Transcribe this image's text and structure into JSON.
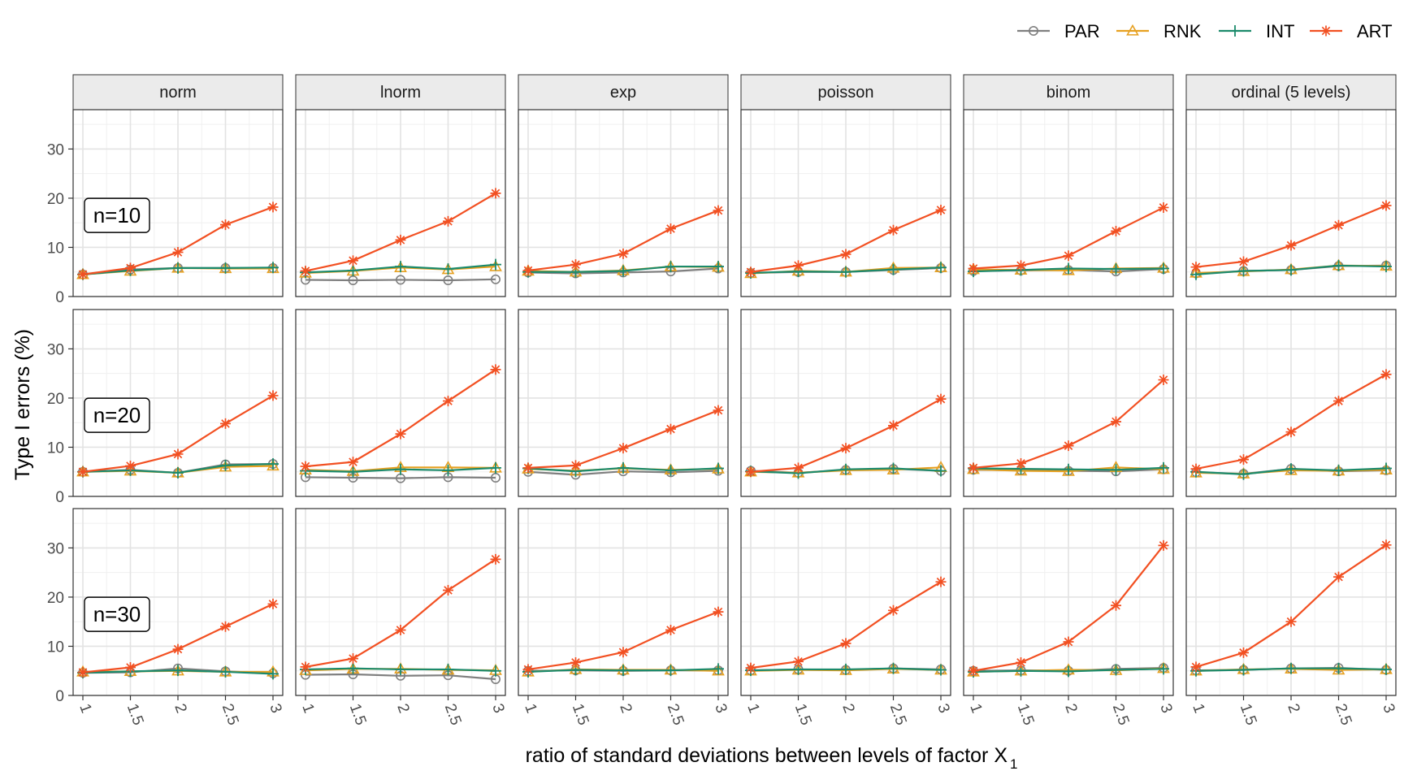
{
  "chart_data": {
    "type": "line",
    "xlabel": "ratio of standard deviations between levels of factor X",
    "xlabel_subscript": "1",
    "ylabel": "Type I errors (%)",
    "x": [
      1,
      1.5,
      2,
      2.5,
      3
    ],
    "x_tick_labels": [
      "1",
      "1.5",
      "2",
      "2.5",
      "3"
    ],
    "ylim": [
      0,
      38
    ],
    "y_ticks": [
      0,
      10,
      20,
      30
    ],
    "y_tick_labels": [
      "0",
      "10",
      "20",
      "30"
    ],
    "grid": true,
    "legend_position": "top-right",
    "columns": [
      "norm",
      "lnorm",
      "exp",
      "poisson",
      "binom",
      "ordinal (5 levels)"
    ],
    "rows": [
      "n=10",
      "n=20",
      "n=30"
    ],
    "series_styles": [
      {
        "name": "PAR",
        "color": "#7f7f7f",
        "marker": "circle"
      },
      {
        "name": "RNK",
        "color": "#e6a020",
        "marker": "triangle"
      },
      {
        "name": "INT",
        "color": "#1b8a6b",
        "marker": "plus"
      },
      {
        "name": "ART",
        "color": "#f25022",
        "marker": "asterisk"
      }
    ],
    "panels": [
      [
        {
          "PAR": [
            4.5,
            5.5,
            5.8,
            5.8,
            5.8
          ],
          "RNK": [
            4.5,
            5.2,
            5.8,
            5.7,
            5.7
          ],
          "INT": [
            4.5,
            5.3,
            5.8,
            5.8,
            5.9
          ],
          "ART": [
            4.5,
            5.8,
            9.0,
            14.6,
            18.2
          ]
        },
        {
          "PAR": [
            3.4,
            3.3,
            3.4,
            3.3,
            3.5
          ],
          "RNK": [
            4.8,
            5.2,
            5.9,
            5.5,
            6.1
          ],
          "INT": [
            4.9,
            5.3,
            6.1,
            5.6,
            6.5
          ],
          "ART": [
            5.2,
            7.3,
            11.5,
            15.3,
            21.0
          ]
        },
        {
          "PAR": [
            4.9,
            4.7,
            4.9,
            5.1,
            5.7
          ],
          "RNK": [
            5.2,
            5.0,
            5.3,
            6.1,
            6.0
          ],
          "INT": [
            5.0,
            5.0,
            5.2,
            6.1,
            6.1
          ],
          "ART": [
            5.3,
            6.5,
            8.7,
            13.8,
            17.5
          ]
        },
        {
          "PAR": [
            4.8,
            5.0,
            5.0,
            5.4,
            5.8
          ],
          "RNK": [
            4.7,
            5.2,
            5.0,
            5.8,
            5.9
          ],
          "INT": [
            4.8,
            5.1,
            5.0,
            5.5,
            5.9
          ],
          "ART": [
            5.0,
            6.3,
            8.6,
            13.5,
            17.6
          ]
        },
        {
          "PAR": [
            5.2,
            5.3,
            5.4,
            5.1,
            5.6
          ],
          "RNK": [
            5.5,
            5.4,
            5.3,
            5.7,
            5.8
          ],
          "INT": [
            5.1,
            5.4,
            5.7,
            5.6,
            5.7
          ],
          "ART": [
            5.7,
            6.3,
            8.3,
            13.3,
            18.1
          ]
        },
        {
          "PAR": [
            4.7,
            5.2,
            5.4,
            6.2,
            6.3
          ],
          "RNK": [
            4.8,
            5.1,
            5.5,
            6.3,
            6.2
          ],
          "INT": [
            4.5,
            5.2,
            5.4,
            6.3,
            6.1
          ],
          "ART": [
            6.0,
            7.1,
            10.4,
            14.5,
            18.5
          ]
        }
      ],
      [
        {
          "PAR": [
            5.0,
            5.4,
            4.8,
            6.5,
            6.6
          ],
          "RNK": [
            5.0,
            5.2,
            4.8,
            6.0,
            6.2
          ],
          "INT": [
            5.0,
            5.3,
            4.8,
            6.3,
            6.6
          ],
          "ART": [
            5.0,
            6.2,
            8.6,
            14.8,
            20.5
          ]
        },
        {
          "PAR": [
            3.9,
            3.8,
            3.7,
            3.9,
            3.8
          ],
          "RNK": [
            5.4,
            5.1,
            5.9,
            5.9,
            5.8
          ],
          "INT": [
            5.2,
            5.0,
            5.5,
            5.3,
            5.8
          ],
          "ART": [
            6.1,
            7.0,
            12.7,
            19.4,
            25.8
          ]
        },
        {
          "PAR": [
            5.0,
            4.4,
            5.1,
            4.9,
            5.2
          ],
          "RNK": [
            5.6,
            5.2,
            5.7,
            5.4,
            5.6
          ],
          "INT": [
            5.7,
            5.1,
            5.8,
            5.3,
            5.7
          ],
          "ART": [
            5.8,
            6.3,
            9.8,
            13.7,
            17.5
          ]
        },
        {
          "PAR": [
            5.2,
            4.8,
            5.4,
            5.6,
            5.2
          ],
          "RNK": [
            5.0,
            4.8,
            5.3,
            5.4,
            5.9
          ],
          "INT": [
            5.1,
            4.7,
            5.5,
            5.7,
            5.2
          ],
          "ART": [
            5.0,
            5.8,
            9.8,
            14.4,
            19.8
          ]
        },
        {
          "PAR": [
            5.4,
            5.3,
            5.2,
            5.1,
            5.5
          ],
          "RNK": [
            5.5,
            5.2,
            5.1,
            5.9,
            5.5
          ],
          "INT": [
            5.7,
            5.6,
            5.5,
            5.4,
            5.8
          ],
          "ART": [
            5.8,
            6.7,
            10.3,
            15.2,
            23.7
          ]
        },
        {
          "PAR": [
            4.9,
            4.6,
            5.6,
            5.1,
            5.3
          ],
          "RNK": [
            4.8,
            4.6,
            5.3,
            5.2,
            5.4
          ],
          "INT": [
            5.0,
            4.5,
            5.6,
            5.3,
            5.7
          ],
          "ART": [
            5.6,
            7.5,
            13.1,
            19.4,
            24.8
          ]
        }
      ],
      [
        {
          "PAR": [
            4.6,
            4.7,
            5.5,
            4.9,
            4.5
          ],
          "RNK": [
            4.8,
            4.9,
            5.0,
            4.8,
            4.8
          ],
          "INT": [
            4.6,
            4.9,
            5.1,
            4.8,
            4.4
          ],
          "ART": [
            4.7,
            5.7,
            9.4,
            14.0,
            18.6
          ]
        },
        {
          "PAR": [
            4.2,
            4.3,
            4.0,
            4.1,
            3.3
          ],
          "RNK": [
            5.1,
            5.4,
            5.4,
            5.2,
            5.1
          ],
          "INT": [
            5.3,
            5.5,
            5.3,
            5.3,
            5.0
          ],
          "ART": [
            5.8,
            7.5,
            13.3,
            21.4,
            27.7
          ]
        },
        {
          "PAR": [
            5.0,
            5.1,
            5.0,
            5.1,
            5.1
          ],
          "RNK": [
            4.8,
            5.3,
            5.2,
            5.2,
            5.0
          ],
          "INT": [
            4.8,
            5.2,
            5.1,
            5.1,
            5.4
          ],
          "ART": [
            5.3,
            6.7,
            8.8,
            13.3,
            17.0
          ]
        },
        {
          "PAR": [
            5.1,
            5.3,
            5.2,
            5.5,
            5.3
          ],
          "RNK": [
            5.0,
            5.2,
            5.1,
            5.4,
            5.2
          ],
          "INT": [
            5.1,
            5.3,
            5.3,
            5.5,
            5.2
          ],
          "ART": [
            5.6,
            6.9,
            10.6,
            17.3,
            23.1
          ]
        },
        {
          "PAR": [
            5.0,
            5.1,
            5.0,
            5.4,
            5.6
          ],
          "RNK": [
            4.8,
            5.0,
            5.2,
            5.1,
            5.5
          ],
          "INT": [
            4.8,
            5.0,
            4.9,
            5.2,
            5.4
          ],
          "ART": [
            5.0,
            6.7,
            10.9,
            18.3,
            30.5
          ]
        },
        {
          "PAR": [
            5.1,
            5.2,
            5.5,
            5.6,
            5.2
          ],
          "RNK": [
            5.0,
            5.3,
            5.4,
            5.2,
            5.3
          ],
          "INT": [
            5.0,
            5.2,
            5.5,
            5.5,
            5.3
          ],
          "ART": [
            5.8,
            8.7,
            15.0,
            24.1,
            30.6
          ]
        }
      ]
    ]
  }
}
